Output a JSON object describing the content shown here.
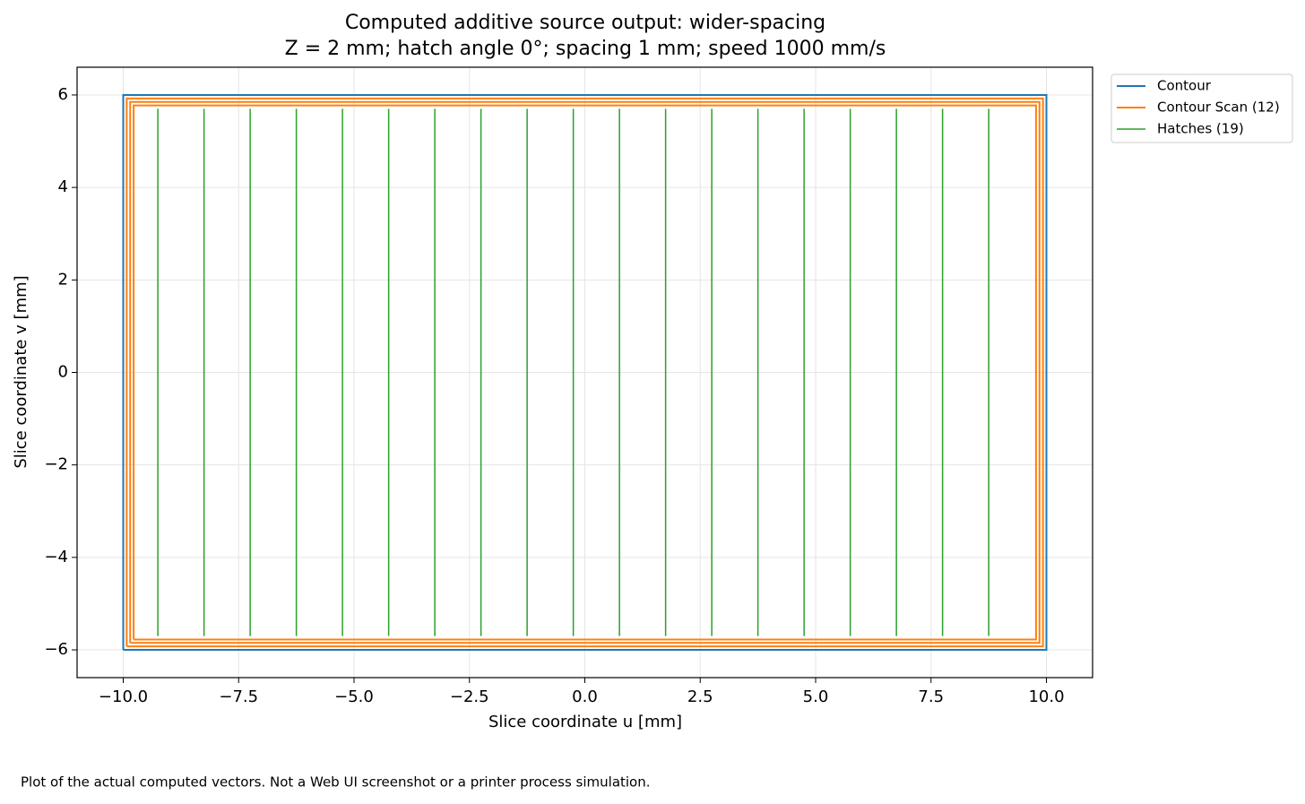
{
  "chart_data": {
    "type": "line",
    "title": "Computed additive source output: wider-spacing",
    "subtitle": "Z = 2 mm; hatch angle 0°; spacing 1 mm; speed 1000 mm/s",
    "x_label": "Slice coordinate u [mm]",
    "y_label": "Slice coordinate v [mm]",
    "footnote": "Plot of the actual computed vectors. Not a Web UI screenshot or a printer process simulation.",
    "xlim": [
      -11,
      11
    ],
    "ylim": [
      -6.6,
      6.6
    ],
    "xticks": [
      {
        "value": -10,
        "label": "−10.0"
      },
      {
        "value": -7.5,
        "label": "−7.5"
      },
      {
        "value": -5,
        "label": "−5.0"
      },
      {
        "value": -2.5,
        "label": "−2.5"
      },
      {
        "value": 0,
        "label": "0.0"
      },
      {
        "value": 2.5,
        "label": "2.5"
      },
      {
        "value": 5,
        "label": "5.0"
      },
      {
        "value": 7.5,
        "label": "7.5"
      },
      {
        "value": 10,
        "label": "10.0"
      }
    ],
    "yticks": [
      {
        "value": -6,
        "label": "−6"
      },
      {
        "value": -4,
        "label": "−4"
      },
      {
        "value": -2,
        "label": "−2"
      },
      0,
      2,
      4,
      6
    ],
    "grid": true,
    "legend": "outside-upper-right",
    "series": [
      {
        "name": "Contour",
        "color": "#1f77b4",
        "width": 2,
        "x": [
          -10,
          10,
          10,
          -10,
          -10
        ],
        "y": [
          -6,
          -6,
          6,
          6,
          -6
        ]
      },
      {
        "name": "Contour Scan (12)",
        "color": "#ff7f0e",
        "width": 2,
        "x": [
          -9.925,
          9.925,
          9.925,
          -9.925,
          -9.925,
          null,
          -9.85,
          9.85,
          9.85,
          -9.85,
          -9.85,
          null,
          -9.775,
          9.775,
          9.775,
          -9.775,
          -9.775
        ],
        "y": [
          -5.925,
          -5.925,
          5.925,
          5.925,
          -5.925,
          null,
          -5.85,
          -5.85,
          5.85,
          5.85,
          -5.85,
          null,
          -5.775,
          -5.775,
          5.775,
          5.775,
          -5.775
        ]
      },
      {
        "name": "Hatches (19)",
        "color": "#2ca02c",
        "width": 1.5,
        "x": [
          -9.25,
          -9.25,
          null,
          -8.25,
          -8.25,
          null,
          -7.25,
          -7.25,
          null,
          -6.25,
          -6.25,
          null,
          -5.25,
          -5.25,
          null,
          -4.25,
          -4.25,
          null,
          -3.25,
          -3.25,
          null,
          -2.25,
          -2.25,
          null,
          -1.25,
          -1.25,
          null,
          -0.25,
          -0.25,
          null,
          0.75,
          0.75,
          null,
          1.75,
          1.75,
          null,
          2.75,
          2.75,
          null,
          3.75,
          3.75,
          null,
          4.75,
          4.75,
          null,
          5.75,
          5.75,
          null,
          6.75,
          6.75,
          null,
          7.75,
          7.75,
          null,
          8.75,
          8.75
        ],
        "y": [
          -5.7,
          5.7,
          null,
          -5.7,
          5.7,
          null,
          -5.7,
          5.7,
          null,
          -5.7,
          5.7,
          null,
          -5.7,
          5.7,
          null,
          -5.7,
          5.7,
          null,
          -5.7,
          5.7,
          null,
          -5.7,
          5.7,
          null,
          -5.7,
          5.7,
          null,
          -5.7,
          5.7,
          null,
          -5.7,
          5.7,
          null,
          -5.7,
          5.7,
          null,
          -5.7,
          5.7,
          null,
          -5.7,
          5.7,
          null,
          -5.7,
          5.7,
          null,
          -5.7,
          5.7,
          null,
          -5.7,
          5.7,
          null,
          -5.7,
          5.7,
          null,
          -5.7,
          5.7
        ]
      }
    ]
  }
}
